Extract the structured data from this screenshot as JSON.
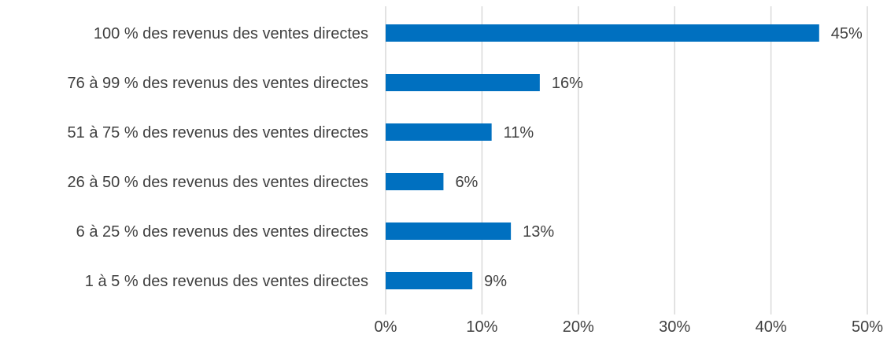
{
  "chart_data": {
    "type": "bar",
    "orientation": "horizontal",
    "title": "",
    "xlabel": "",
    "ylabel": "",
    "categories": [
      "100 % des revenus des ventes directes",
      "76 à 99 % des revenus des ventes directes",
      "51 à 75 % des revenus des ventes directes",
      "26 à 50 % des revenus des ventes directes",
      "6 à 25 % des revenus des ventes directes",
      "1 à 5 % des revenus des ventes directes"
    ],
    "values": [
      45,
      16,
      11,
      6,
      13,
      9
    ],
    "data_labels": [
      "45%",
      "16%",
      "11%",
      "6%",
      "13%",
      "9%"
    ],
    "xlim": [
      0,
      50
    ],
    "x_ticks": [
      0,
      10,
      20,
      30,
      40,
      50
    ],
    "x_tick_labels": [
      "0%",
      "10%",
      "20%",
      "30%",
      "40%",
      "50%"
    ],
    "grid": "vertical",
    "legend": "none",
    "bar_color": "#0070C0",
    "grid_color": "#D9D9D9",
    "text_color": "#404040"
  }
}
